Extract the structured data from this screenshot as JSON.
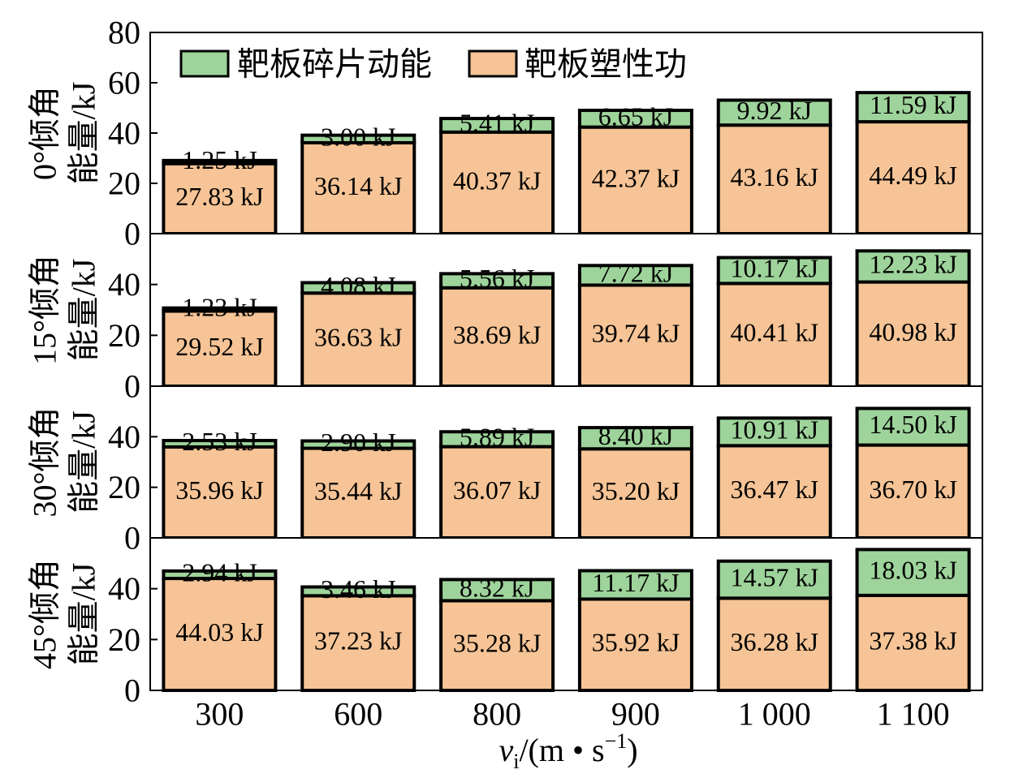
{
  "chart_data": [
    {
      "type": "bar",
      "stacked": true,
      "categories": [
        "300",
        "600",
        "800",
        "900",
        "1 000",
        "1 100"
      ],
      "ylabel": [
        "0°倾角",
        "能量/kJ"
      ],
      "ylim": [
        0,
        80
      ],
      "yticks": [
        0,
        20,
        40,
        60,
        80
      ],
      "grid": false,
      "legend": {
        "placement": "top-left",
        "order": [
          1,
          0
        ]
      },
      "series": [
        {
          "name": "靶板塑性功",
          "color": "#F6C496",
          "values": [
            27.83,
            36.14,
            40.37,
            42.37,
            43.16,
            44.49
          ],
          "labels": [
            "27.83 kJ",
            "36.14 kJ",
            "40.37 kJ",
            "42.37 kJ",
            "43.16 kJ",
            "44.49 kJ"
          ]
        },
        {
          "name": "靶板碎片动能",
          "color": "#9ED49B",
          "values": [
            1.25,
            3.0,
            5.41,
            6.65,
            9.92,
            11.59
          ],
          "labels": [
            "1.25 kJ",
            "3.00 kJ",
            "5.41 kJ",
            "6.65 kJ",
            "9.92 kJ",
            "11.59 kJ"
          ]
        }
      ]
    },
    {
      "type": "bar",
      "stacked": true,
      "categories": [
        "300",
        "600",
        "800",
        "900",
        "1 000",
        "1 100"
      ],
      "ylabel": [
        "15°倾角",
        "能量/kJ"
      ],
      "ylim": [
        0,
        60
      ],
      "yticks": [
        0,
        20,
        40
      ],
      "grid": false,
      "series": [
        {
          "name": "靶板塑性功",
          "color": "#F6C496",
          "values": [
            29.52,
            36.63,
            38.69,
            39.74,
            40.41,
            40.98
          ],
          "labels": [
            "29.52 kJ",
            "36.63 kJ",
            "38.69 kJ",
            "39.74 kJ",
            "40.41 kJ",
            "40.98 kJ"
          ]
        },
        {
          "name": "靶板碎片动能",
          "color": "#9ED49B",
          "values": [
            1.23,
            4.08,
            5.56,
            7.72,
            10.17,
            12.23
          ],
          "labels": [
            "1.23 kJ",
            "4.08 kJ",
            "5.56 kJ",
            "7.72 kJ",
            "10.17 kJ",
            "12.23 kJ"
          ]
        }
      ]
    },
    {
      "type": "bar",
      "stacked": true,
      "categories": [
        "300",
        "600",
        "800",
        "900",
        "1 000",
        "1 100"
      ],
      "ylabel": [
        "30°倾角",
        "能量/kJ"
      ],
      "ylim": [
        0,
        60
      ],
      "yticks": [
        0,
        20,
        40
      ],
      "grid": false,
      "series": [
        {
          "name": "靶板塑性功",
          "color": "#F6C496",
          "values": [
            35.96,
            35.44,
            36.07,
            35.2,
            36.47,
            36.7
          ],
          "labels": [
            "35.96 kJ",
            "35.44 kJ",
            "36.07 kJ",
            "35.20 kJ",
            "36.47 kJ",
            "36.70 kJ"
          ]
        },
        {
          "name": "靶板碎片动能",
          "color": "#9ED49B",
          "values": [
            2.53,
            2.9,
            5.89,
            8.4,
            10.91,
            14.5
          ],
          "labels": [
            "2.53 kJ",
            "2.90 kJ",
            "5.89 kJ",
            "8.40 kJ",
            "10.91 kJ",
            "14.50 kJ"
          ]
        }
      ]
    },
    {
      "type": "bar",
      "stacked": true,
      "categories": [
        "300",
        "600",
        "800",
        "900",
        "1 000",
        "1 100"
      ],
      "ylabel": [
        "45°倾角",
        "能量/kJ"
      ],
      "ylim": [
        0,
        60
      ],
      "yticks": [
        0,
        20,
        40
      ],
      "grid": false,
      "xlabel": {
        "var": "v",
        "sub": "i",
        "text": "/(m • s",
        "sup": "−1",
        "close": ")"
      },
      "series": [
        {
          "name": "靶板塑性功",
          "color": "#F6C496",
          "values": [
            44.03,
            37.23,
            35.28,
            35.92,
            36.28,
            37.38
          ],
          "labels": [
            "44.03 kJ",
            "37.23 kJ",
            "35.28 kJ",
            "35.92 kJ",
            "36.28 kJ",
            "37.38 kJ"
          ]
        },
        {
          "name": "靶板碎片动能",
          "color": "#9ED49B",
          "values": [
            2.94,
            3.46,
            8.32,
            11.17,
            14.57,
            18.03
          ],
          "labels": [
            "2.94 kJ",
            "3.46 kJ",
            "8.32 kJ",
            "11.17 kJ",
            "14.57 kJ",
            "18.03 kJ"
          ]
        }
      ]
    }
  ]
}
